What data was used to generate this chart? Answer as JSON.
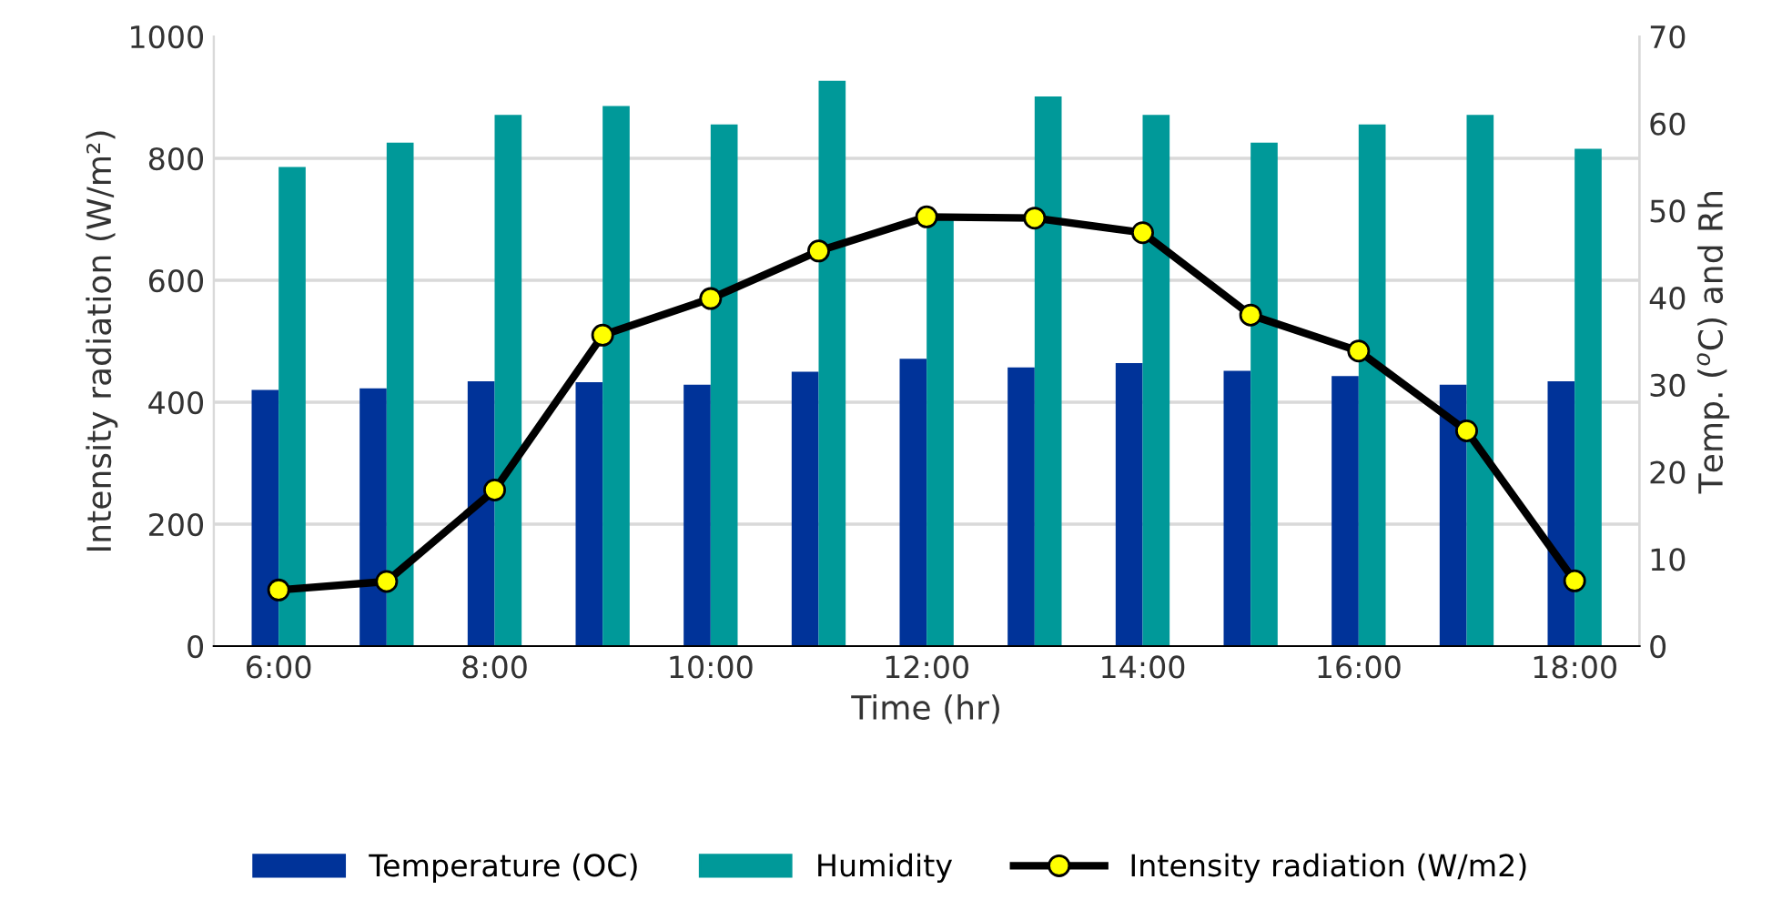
{
  "chart_data": {
    "type": "bar",
    "xlabel": "Time (hr)",
    "ylabel": "Intensity radiation (W/m²)",
    "y2label": "Temp. ($^{o}$C) and Rh",
    "categories": [
      "6:00",
      null,
      "8:00",
      null,
      "10:00",
      null,
      "12:00",
      null,
      "14:00",
      null,
      "16:00",
      null,
      "18:00"
    ],
    "series": [
      {
        "name": "Temperature (OC)",
        "axis": "y2",
        "color": "#003399",
        "values": [
          29.4,
          29.6,
          30.4,
          30.3,
          30.0,
          31.5,
          33.0,
          32.0,
          32.5,
          31.6,
          31.0,
          30.0,
          30.4
        ]
      },
      {
        "name": "Humidity",
        "axis": "y2",
        "color": "#009999",
        "values": [
          55.0,
          57.8,
          61.0,
          62.0,
          59.9,
          64.9,
          49.0,
          63.1,
          61.0,
          57.8,
          59.9,
          61.0,
          57.1
        ]
      },
      {
        "name": "Intensity radiation (W/m2)",
        "type": "line",
        "axis": "y",
        "color": "#000000",
        "marker": "circle",
        "values": [
          92,
          106,
          256,
          510,
          570,
          648,
          704,
          702,
          678,
          543,
          484,
          353,
          107
        ]
      }
    ],
    "ylim": [
      0,
      1000
    ],
    "yticks": [
      0,
      200,
      400,
      600,
      800,
      1000
    ],
    "y2lim": [
      0,
      70
    ],
    "y2ticks": [
      0,
      10,
      20,
      30,
      40,
      50,
      60,
      70
    ],
    "grid": "y",
    "legend": "bottom"
  }
}
